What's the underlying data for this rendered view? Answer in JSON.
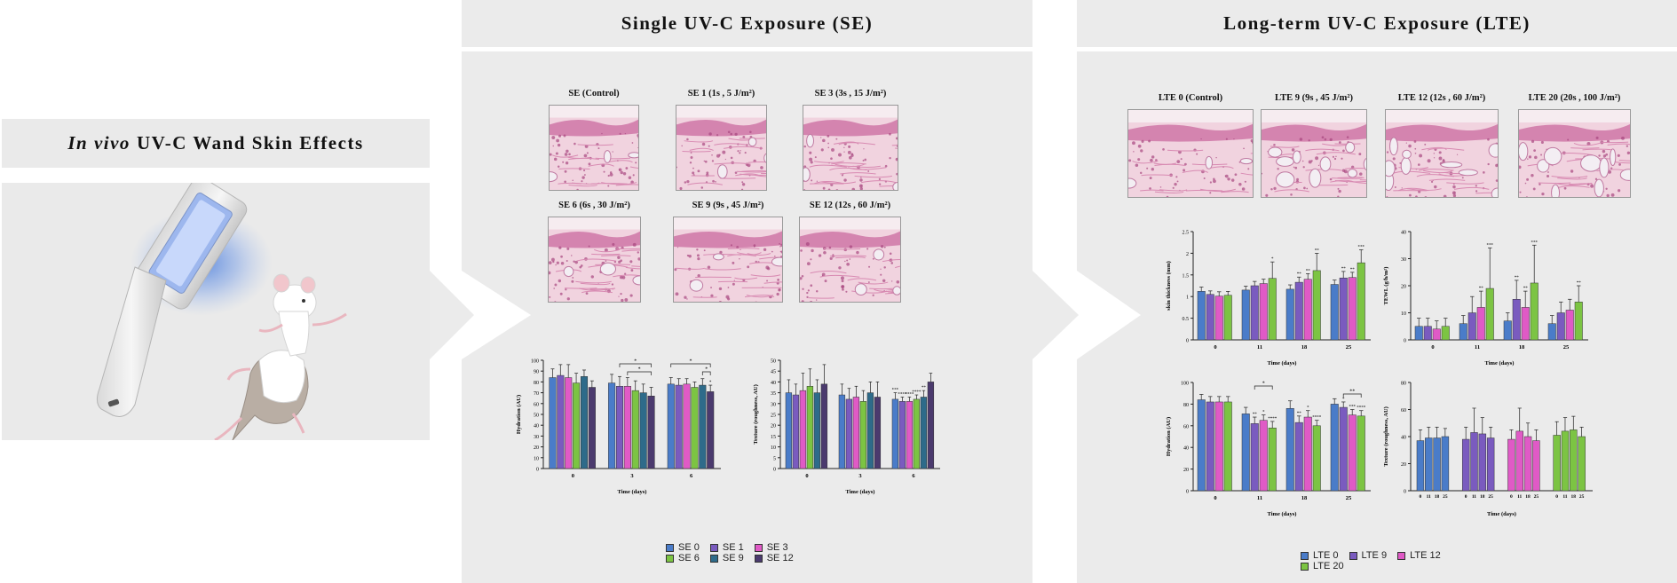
{
  "left_panel": {
    "title_italic": "In vivo",
    "title_rest": "UV-C Wand Skin Effects"
  },
  "colors": {
    "c0": "#4a7cc9",
    "c1": "#7a5bbf",
    "c2": "#e05ac6",
    "c3": "#7cc443",
    "c4": "#2e6b8a",
    "c5": "#4b3a6e",
    "panel_bg": "#ebebeb"
  },
  "se_panel": {
    "title": "Single UV-C Exposure (SE)",
    "histology": [
      {
        "label": "SE (Control)"
      },
      {
        "label": "SE 1 (1s , 5 J/m²)"
      },
      {
        "label": "SE 3 (3s , 15 J/m²)"
      },
      {
        "label": "SE 6 (6s , 30 J/m²)"
      },
      {
        "label": "SE 9 (9s , 45 J/m²)"
      },
      {
        "label": "SE 12 (12s , 60 J/m²)"
      }
    ],
    "legend": [
      {
        "label": "SE 0",
        "color": "#4a7cc9"
      },
      {
        "label": "SE 1",
        "color": "#7a5bbf"
      },
      {
        "label": "SE 3",
        "color": "#e05ac6"
      },
      {
        "label": "SE 6",
        "color": "#7cc443"
      },
      {
        "label": "SE 9",
        "color": "#2e6b8a"
      },
      {
        "label": "SE 12",
        "color": "#4b3a6e"
      }
    ]
  },
  "lte_panel": {
    "title": "Long-term UV-C Exposure (LTE)",
    "histology": [
      {
        "label": "LTE 0 (Control)"
      },
      {
        "label": "LTE 9 (9s , 45 J/m²)"
      },
      {
        "label": "LTE 12 (12s , 60 J/m²)"
      },
      {
        "label": "LTE 20 (20s , 100 J/m²)"
      }
    ],
    "legend": [
      {
        "label": "LTE 0",
        "color": "#4a7cc9"
      },
      {
        "label": "LTE 9",
        "color": "#7a5bbf"
      },
      {
        "label": "LTE 12",
        "color": "#e05ac6"
      },
      {
        "label": "LTE 20",
        "color": "#7cc443"
      }
    ]
  },
  "chart_data": [
    {
      "id": "se_hydration",
      "type": "bar",
      "xlabel": "Time (days)",
      "ylabel": "Hydration (AU)",
      "ylim": [
        0,
        100
      ],
      "yticks": [
        0,
        10,
        20,
        30,
        40,
        50,
        60,
        70,
        80,
        90,
        100
      ],
      "categories": [
        "0",
        "3",
        "6"
      ],
      "series": [
        {
          "values": [
            84,
            79,
            78
          ],
          "color": "#4a7cc9"
        },
        {
          "values": [
            86,
            76,
            77
          ],
          "color": "#7a5bbf"
        },
        {
          "values": [
            84,
            76,
            78
          ],
          "color": "#e05ac6"
        },
        {
          "values": [
            79,
            72,
            75
          ],
          "color": "#7cc443"
        },
        {
          "values": [
            85,
            70,
            77
          ],
          "color": "#2e6b8a"
        },
        {
          "values": [
            75,
            67,
            71
          ],
          "color": "#4b3a6e"
        }
      ],
      "errors": [
        [
          8,
          8,
          6
        ],
        [
          10,
          9,
          6
        ],
        [
          12,
          8,
          5
        ],
        [
          9,
          9,
          5
        ],
        [
          6,
          8,
          6
        ],
        [
          6,
          8,
          6
        ]
      ],
      "stars": [
        [
          "",
          "",
          ""
        ],
        [
          "",
          "",
          ""
        ],
        [
          "",
          "",
          ""
        ],
        [
          "",
          "",
          ""
        ],
        [
          "",
          "",
          ""
        ],
        [
          "",
          "",
          "*"
        ]
      ],
      "brackets": [
        {
          "from": [
            1,
            1
          ],
          "to": [
            1,
            5
          ],
          "label": "*"
        },
        {
          "from": [
            1,
            2
          ],
          "to": [
            1,
            5
          ],
          "label": "*"
        },
        {
          "from": [
            2,
            0
          ],
          "to": [
            2,
            5
          ],
          "label": "*"
        },
        {
          "from": [
            2,
            4
          ],
          "to": [
            2,
            5
          ],
          "label": "*"
        }
      ]
    },
    {
      "id": "se_texture",
      "type": "bar",
      "xlabel": "Time (days)",
      "ylabel": "Texture (roughness, AU)",
      "ylim": [
        0,
        50
      ],
      "yticks": [
        0,
        5,
        10,
        15,
        20,
        25,
        30,
        35,
        40,
        45,
        50
      ],
      "categories": [
        "0",
        "3",
        "6"
      ],
      "series": [
        {
          "values": [
            35,
            34,
            32
          ],
          "color": "#4a7cc9"
        },
        {
          "values": [
            34,
            32,
            31
          ],
          "color": "#7a5bbf"
        },
        {
          "values": [
            36,
            33,
            31
          ],
          "color": "#e05ac6"
        },
        {
          "values": [
            38,
            31,
            32
          ],
          "color": "#7cc443"
        },
        {
          "values": [
            35,
            35,
            33
          ],
          "color": "#2e6b8a"
        },
        {
          "values": [
            39,
            33,
            40
          ],
          "color": "#4b3a6e"
        }
      ],
      "errors": [
        [
          6,
          5,
          3
        ],
        [
          5,
          5,
          2
        ],
        [
          8,
          5,
          2
        ],
        [
          8,
          5,
          2
        ],
        [
          6,
          5,
          3
        ],
        [
          9,
          7,
          4
        ]
      ],
      "stars": [
        [
          "",
          "",
          "***"
        ],
        [
          "",
          "",
          "****"
        ],
        [
          "",
          "",
          "****"
        ],
        [
          "",
          "",
          "****"
        ],
        [
          "",
          "",
          "**"
        ],
        [
          "",
          "",
          ""
        ]
      ],
      "brackets": []
    },
    {
      "id": "lte_thickness",
      "type": "bar",
      "xlabel": "Time (days)",
      "ylabel": "skin thickness (mm)",
      "ylim": [
        0,
        2.5
      ],
      "yticks": [
        0,
        0.5,
        1.0,
        1.5,
        2.0,
        2.5
      ],
      "categories": [
        "0",
        "11",
        "18",
        "25"
      ],
      "series": [
        {
          "values": [
            1.12,
            1.15,
            1.17,
            1.28
          ],
          "color": "#4a7cc9"
        },
        {
          "values": [
            1.05,
            1.25,
            1.33,
            1.43
          ],
          "color": "#7a5bbf"
        },
        {
          "values": [
            1.01,
            1.3,
            1.4,
            1.44
          ],
          "color": "#e05ac6"
        },
        {
          "values": [
            1.03,
            1.42,
            1.6,
            1.78
          ],
          "color": "#7cc443"
        }
      ],
      "errors": [
        [
          0.1,
          0.09,
          0.1,
          0.1
        ],
        [
          0.08,
          0.1,
          0.12,
          0.15
        ],
        [
          0.1,
          0.1,
          0.13,
          0.12
        ],
        [
          0.09,
          0.38,
          0.4,
          0.3
        ]
      ],
      "stars": [
        [
          "",
          "",
          "",
          ""
        ],
        [
          "",
          "",
          "**",
          "**"
        ],
        [
          "",
          "",
          "**",
          "**"
        ],
        [
          "",
          "*",
          "**",
          "***"
        ]
      ],
      "brackets": []
    },
    {
      "id": "lte_tewl",
      "type": "bar",
      "xlabel": "Time (days)",
      "ylabel": "TEWL (g/h/m²)",
      "ylim": [
        0,
        40
      ],
      "yticks": [
        0,
        10,
        20,
        30,
        40
      ],
      "categories": [
        "0",
        "11",
        "18",
        "25"
      ],
      "series": [
        {
          "values": [
            5,
            6,
            7,
            6
          ],
          "color": "#4a7cc9"
        },
        {
          "values": [
            5,
            10,
            15,
            10
          ],
          "color": "#7a5bbf"
        },
        {
          "values": [
            4,
            12,
            12,
            11
          ],
          "color": "#e05ac6"
        },
        {
          "values": [
            5,
            19,
            21,
            14
          ],
          "color": "#7cc443"
        }
      ],
      "errors": [
        [
          3,
          3,
          3,
          3
        ],
        [
          3,
          6,
          7,
          4
        ],
        [
          3,
          6,
          6,
          4
        ],
        [
          3,
          15,
          14,
          6
        ]
      ],
      "stars": [
        [
          "",
          "",
          "",
          ""
        ],
        [
          "",
          "",
          "**",
          ""
        ],
        [
          "",
          "**",
          "**",
          ""
        ],
        [
          "",
          "***",
          "***",
          "**"
        ]
      ],
      "brackets": []
    },
    {
      "id": "lte_hydration",
      "type": "bar",
      "xlabel": "Time (days)",
      "ylabel": "Hydration (AU)",
      "ylim": [
        0,
        100
      ],
      "yticks": [
        0,
        20,
        40,
        60,
        80,
        100
      ],
      "categories": [
        "0",
        "11",
        "18",
        "25"
      ],
      "series": [
        {
          "values": [
            84,
            71,
            76,
            80
          ],
          "color": "#4a7cc9"
        },
        {
          "values": [
            82,
            62,
            63,
            77
          ],
          "color": "#7a5bbf"
        },
        {
          "values": [
            82,
            65,
            68,
            70
          ],
          "color": "#e05ac6"
        },
        {
          "values": [
            82,
            58,
            60,
            69
          ],
          "color": "#7cc443"
        }
      ],
      "errors": [
        [
          5,
          6,
          7,
          5
        ],
        [
          5,
          6,
          6,
          5
        ],
        [
          5,
          5,
          6,
          5
        ],
        [
          5,
          6,
          5,
          5
        ]
      ],
      "stars": [
        [
          "",
          "",
          "",
          ""
        ],
        [
          "",
          "**",
          "**",
          "*"
        ],
        [
          "",
          "*",
          "*",
          "***"
        ],
        [
          "",
          "****",
          "****",
          "****"
        ]
      ],
      "brackets": [
        {
          "from": [
            1,
            1
          ],
          "to": [
            1,
            3
          ],
          "label": "*"
        },
        {
          "from": [
            3,
            1
          ],
          "to": [
            3,
            3
          ],
          "label": "**"
        }
      ]
    },
    {
      "id": "lte_texture",
      "type": "bar",
      "xlabel": "Time (days)",
      "ylabel": "Texture (roughness, AU)",
      "ylim": [
        0,
        80
      ],
      "yticks": [
        0,
        20,
        40,
        60,
        80
      ],
      "categories": [
        "0",
        "11",
        "18",
        "25",
        "0",
        "11",
        "18",
        "25",
        "0",
        "11",
        "18",
        "25",
        "0",
        "11",
        "18",
        "25"
      ],
      "groups": 4,
      "series": [
        {
          "values": [
            37,
            39,
            39,
            40,
            38,
            43,
            42,
            39,
            38,
            44,
            40,
            37,
            41,
            44,
            45,
            40
          ]
        }
      ],
      "group_colors": [
        "#4a7cc9",
        "#7a5bbf",
        "#e05ac6",
        "#7cc443"
      ],
      "errors": [
        [
          8,
          8,
          8,
          6,
          9,
          18,
          12,
          8,
          7,
          17,
          10,
          8,
          10,
          10,
          10,
          7
        ]
      ],
      "stars": [],
      "brackets": []
    }
  ]
}
